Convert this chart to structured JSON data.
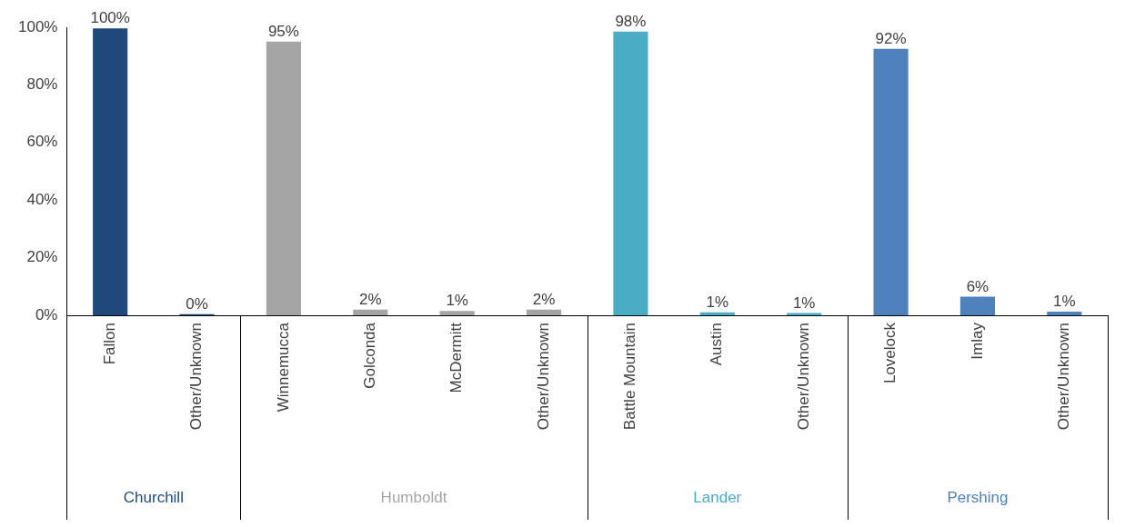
{
  "chart_data": {
    "type": "bar",
    "categories": [
      "Fallon",
      "Other/Unknown",
      "Winnemucca",
      "Golconda",
      "McDermitt",
      "Other/Unknown",
      "Battle Mountain",
      "Austin",
      "Other/Unknown",
      "Lovelock",
      "Imlay",
      "Other/Unknown"
    ],
    "series": [
      {
        "name": "Churchill",
        "color": "#1f497d",
        "values": [
          99.6,
          0.4,
          null,
          null,
          null,
          null,
          null,
          null,
          null,
          null,
          null,
          null
        ],
        "value_labels": [
          "100%",
          "0%",
          null,
          null,
          null,
          null,
          null,
          null,
          null,
          null,
          null,
          null
        ]
      },
      {
        "name": "Humboldt",
        "color": "#a5a5a5",
        "values": [
          null,
          null,
          95,
          2,
          1.5,
          2,
          null,
          null,
          null,
          null,
          null,
          null
        ],
        "value_labels": [
          null,
          null,
          "95%",
          "2%",
          "1%",
          "2%",
          null,
          null,
          null,
          null,
          null,
          null
        ]
      },
      {
        "name": "Lander",
        "color": "#4bacc6",
        "values": [
          null,
          null,
          null,
          null,
          null,
          null,
          98.5,
          1,
          0.8,
          null,
          null,
          null
        ],
        "value_labels": [
          null,
          null,
          null,
          null,
          null,
          null,
          "98%",
          "1%",
          "1%",
          null,
          null,
          null
        ]
      },
      {
        "name": "Pershing",
        "color": "#4f81bd",
        "values": [
          null,
          null,
          null,
          null,
          null,
          null,
          null,
          null,
          null,
          92.5,
          6.5,
          1.3
        ],
        "value_labels": [
          null,
          null,
          null,
          null,
          null,
          null,
          null,
          null,
          null,
          "92%",
          "6%",
          "1%"
        ]
      }
    ],
    "ylim": [
      0,
      100
    ],
    "yticks": [
      {
        "value": 0,
        "label": "0%"
      },
      {
        "value": 20,
        "label": "20%"
      },
      {
        "value": 40,
        "label": "40%"
      },
      {
        "value": 60,
        "label": "60%"
      },
      {
        "value": 80,
        "label": "80%"
      },
      {
        "value": 100,
        "label": "100%"
      }
    ],
    "grid": false,
    "legend": false
  }
}
